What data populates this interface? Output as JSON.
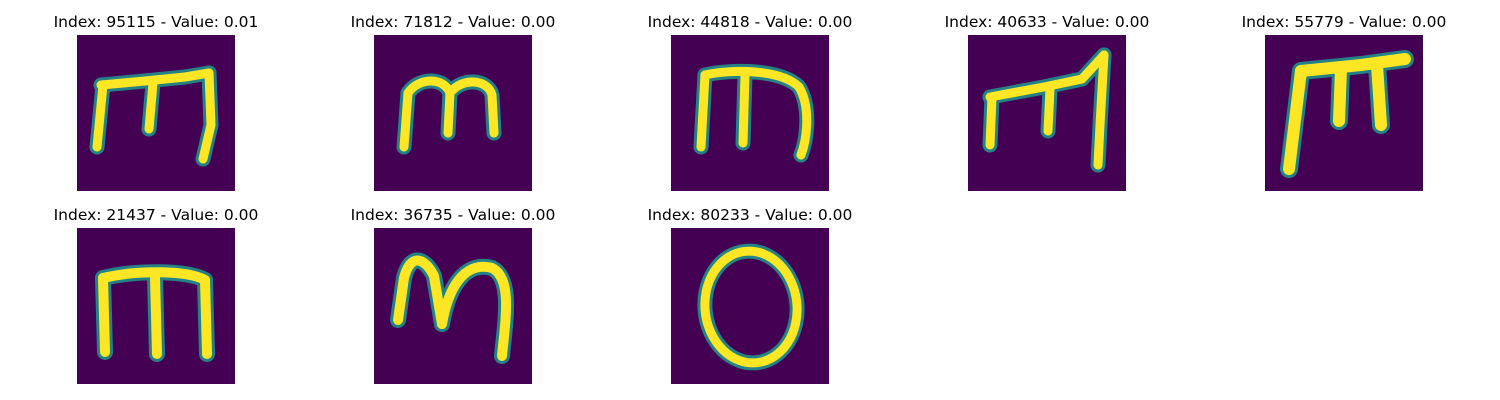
{
  "colors": {
    "background": "#440154",
    "low": "#3b528b",
    "mid": "#21918c",
    "high": "#5ec962",
    "peak": "#fde725"
  },
  "panels": [
    {
      "title": "Index: 95115 - Value: 0.01",
      "glyph": "m-variant-1"
    },
    {
      "title": "Index: 71812 - Value: 0.00",
      "glyph": "m-variant-2"
    },
    {
      "title": "Index: 44818 - Value: 0.00",
      "glyph": "m-variant-3"
    },
    {
      "title": "Index: 40633 - Value: 0.00",
      "glyph": "m-variant-4"
    },
    {
      "title": "Index: 55779 - Value: 0.00",
      "glyph": "m-variant-5"
    },
    {
      "title": "Index: 21437 - Value: 0.00",
      "glyph": "m-variant-6"
    },
    {
      "title": "Index: 36735 - Value: 0.00",
      "glyph": "m-variant-7"
    },
    {
      "title": "Index: 80233 - Value: 0.00",
      "glyph": "o-letter"
    }
  ]
}
